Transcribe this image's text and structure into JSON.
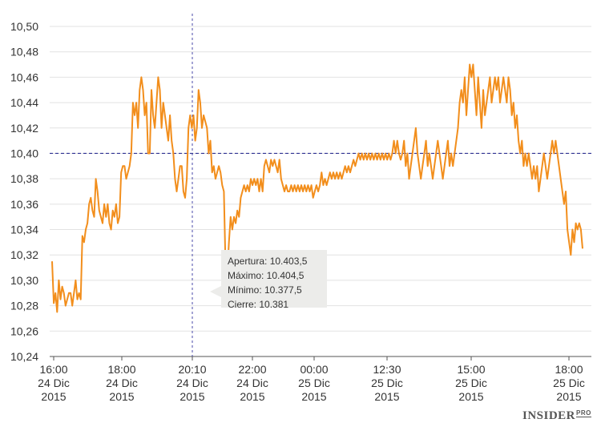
{
  "chart_data": {
    "type": "line",
    "color": "#f28e1c",
    "ylim": [
      10.24,
      10.5
    ],
    "y_ticks": [
      "10,24",
      "10,26",
      "10,28",
      "10,30",
      "10,32",
      "10,34",
      "10,36",
      "10,38",
      "10,40",
      "10,42",
      "10,44",
      "10,46",
      "10,48",
      "10,50"
    ],
    "reference_line": 10.4,
    "x_ticks": [
      {
        "time": "16:00",
        "day": "24 Dic",
        "year": "2015"
      },
      {
        "time": "18:00",
        "day": "24 Dic",
        "year": "2015"
      },
      {
        "time": "20:10",
        "day": "24 Dic",
        "year": "2015"
      },
      {
        "time": "22:00",
        "day": "24 Dic",
        "year": "2015"
      },
      {
        "time": "00:00",
        "day": "25 Dic",
        "year": "2015"
      },
      {
        "time": "12:30",
        "day": "25 Dic",
        "year": "2015"
      },
      {
        "time": "15:00",
        "day": "25 Dic",
        "year": "2015"
      },
      {
        "time": "18:00",
        "day": "25 Dic",
        "year": "2015"
      }
    ],
    "crosshair_tick": "20:10",
    "series": [
      {
        "values": [
          10.315,
          10.282,
          10.29,
          10.275,
          10.3,
          10.285,
          10.295,
          10.29,
          10.28,
          10.285,
          10.29,
          10.29,
          10.28,
          10.29,
          10.3,
          10.285,
          10.29,
          10.285,
          10.335,
          10.33,
          10.34,
          10.345,
          10.36,
          10.365,
          10.355,
          10.35,
          10.38,
          10.37,
          10.355,
          10.35,
          10.345,
          10.36,
          10.35,
          10.36,
          10.345,
          10.34,
          10.355,
          10.35,
          10.36,
          10.345,
          10.35,
          10.385,
          10.39,
          10.39,
          10.38,
          10.385,
          10.39,
          10.4,
          10.44,
          10.43,
          10.44,
          10.42,
          10.45,
          10.46,
          10.45,
          10.43,
          10.44,
          10.4,
          10.4,
          10.45,
          10.43,
          10.42,
          10.44,
          10.46,
          10.45,
          10.42,
          10.44,
          10.43,
          10.42,
          10.41,
          10.43,
          10.41,
          10.4,
          10.38,
          10.37,
          10.38,
          10.39,
          10.39,
          10.37,
          10.365,
          10.38,
          10.42,
          10.43,
          10.42,
          10.43,
          10.41,
          10.42,
          10.45,
          10.44,
          10.42,
          10.43,
          10.425,
          10.42,
          10.4,
          10.41,
          10.385,
          10.39,
          10.38,
          10.385,
          10.39,
          10.385,
          10.375,
          10.37,
          10.31,
          10.305,
          10.33,
          10.35,
          10.34,
          10.35,
          10.345,
          10.355,
          10.35,
          10.365,
          10.37,
          10.375,
          10.37,
          10.375,
          10.37,
          10.38,
          10.375,
          10.38,
          10.375,
          10.38,
          10.37,
          10.38,
          10.37,
          10.39,
          10.395,
          10.39,
          10.385,
          10.395,
          10.39,
          10.395,
          10.39,
          10.385,
          10.395,
          10.38,
          10.375,
          10.37,
          10.375,
          10.37,
          10.37,
          10.375,
          10.37,
          10.375,
          10.37,
          10.375,
          10.37,
          10.375,
          10.37,
          10.375,
          10.37,
          10.375,
          10.37,
          10.375,
          10.365,
          10.37,
          10.375,
          10.37,
          10.375,
          10.385,
          10.375,
          10.38,
          10.375,
          10.38,
          10.385,
          10.38,
          10.385,
          10.38,
          10.385,
          10.38,
          10.385,
          10.38,
          10.385,
          10.39,
          10.385,
          10.39,
          10.385,
          10.39,
          10.395,
          10.39,
          10.395,
          10.4,
          10.395,
          10.4,
          10.395,
          10.4,
          10.395,
          10.4,
          10.395,
          10.4,
          10.395,
          10.4,
          10.395,
          10.4,
          10.395,
          10.4,
          10.395,
          10.4,
          10.395,
          10.4,
          10.395,
          10.4,
          10.41,
          10.4,
          10.41,
          10.4,
          10.395,
          10.4,
          10.41,
          10.39,
          10.4,
          10.38,
          10.39,
          10.4,
          10.41,
          10.42,
          10.4,
          10.39,
          10.38,
          10.39,
          10.4,
          10.41,
          10.39,
          10.4,
          10.39,
          10.38,
          10.39,
          10.4,
          10.41,
          10.4,
          10.39,
          10.38,
          10.39,
          10.4,
          10.41,
          10.39,
          10.4,
          10.39,
          10.4,
          10.41,
          10.42,
          10.44,
          10.45,
          10.44,
          10.46,
          10.43,
          10.45,
          10.47,
          10.46,
          10.47,
          10.45,
          10.43,
          10.46,
          10.44,
          10.42,
          10.45,
          10.43,
          10.44,
          10.45,
          10.46,
          10.44,
          10.45,
          10.46,
          10.45,
          10.46,
          10.44,
          10.45,
          10.46,
          10.45,
          10.44,
          10.46,
          10.45,
          10.43,
          10.44,
          10.42,
          10.43,
          10.41,
          10.4,
          10.41,
          10.39,
          10.4,
          10.39,
          10.4,
          10.39,
          10.38,
          10.39,
          10.38,
          10.39,
          10.37,
          10.38,
          10.39,
          10.4,
          10.39,
          10.38,
          10.39,
          10.4,
          10.41,
          10.4,
          10.41,
          10.4,
          10.39,
          10.38,
          10.37,
          10.36,
          10.37,
          10.34,
          10.33,
          10.32,
          10.34,
          10.33,
          10.345,
          10.34,
          10.345,
          10.34,
          10.325
        ]
      }
    ]
  },
  "tooltip": {
    "apertura": "Apertura: 10.403,5",
    "maximo": "Máximo: 10.404,5",
    "minimo": "Mínimo: 10.377,5",
    "cierre": "Cierre: 10.381"
  },
  "brand": {
    "name": "INSIDER",
    "suffix": "PRO"
  }
}
